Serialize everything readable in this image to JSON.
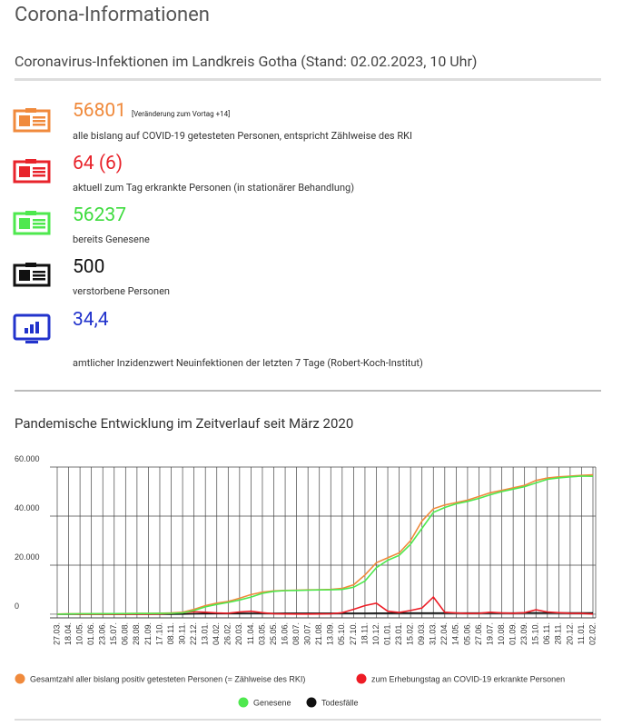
{
  "header": {
    "title": "Corona-Informationen",
    "subtitle": "Coronavirus-Infektionen im Landkreis Gotha (Stand: 02.02.2023, 10 Uhr)"
  },
  "stats": [
    {
      "value": "56801",
      "note": "[Veränderung zum Vortag +14]",
      "description": "alle bislang auf COVID-19 getesteten Personen, entspricht Zählweise des RKI"
    },
    {
      "value": "64 (6)",
      "description": "aktuell zum Tag erkrankte Personen (in stationärer Behandlung)"
    },
    {
      "value": "56237",
      "description": "bereits Genesene"
    },
    {
      "value": "500",
      "description": "verstorbene Personen"
    },
    {
      "value": "34,4",
      "description": "amtlicher Inzidenzwert Neuinfektionen der letzten 7 Tage (Robert-Koch-Institut)"
    }
  ],
  "chart_data": {
    "type": "line",
    "title": "Pandemische Entwicklung im Zeitverlauf seit März 2020",
    "categories": [
      "27.03.",
      "18.04.",
      "10.05.",
      "01.06.",
      "23.06.",
      "15.07.",
      "06.08.",
      "28.08.",
      "21.09.",
      "17.10.",
      "08.11.",
      "30.11.",
      "22.12.",
      "13.01.",
      "04.02.",
      "26.02.",
      "20.03.",
      "11.04.",
      "03.05.",
      "25.05.",
      "16.06.",
      "08.07.",
      "30.07.",
      "21.08.",
      "13.09.",
      "05.10.",
      "27.10.",
      "18.11.",
      "10.12.",
      "01.01.",
      "23.01.",
      "15.02.",
      "09.03.",
      "31.03.",
      "22.04.",
      "14.05.",
      "05.06.",
      "27.06.",
      "19.07.",
      "10.08.",
      "01.09.",
      "23.09.",
      "15.10.",
      "06.11.",
      "28.11.",
      "20.12.",
      "11.01.",
      "02.02."
    ],
    "series": [
      {
        "name": "Gesamtzahl aller bislang positiv getesteten Personen (= Zählweise des RKI)",
        "color": "#f08a3c",
        "values": [
          50,
          150,
          200,
          220,
          230,
          240,
          260,
          300,
          350,
          400,
          500,
          800,
          2000,
          3500,
          4500,
          5200,
          6500,
          8000,
          9000,
          9500,
          9700,
          9800,
          9900,
          10000,
          10100,
          10500,
          12000,
          16000,
          21000,
          23000,
          25000,
          30000,
          38000,
          43000,
          44500,
          45500,
          46500,
          48000,
          49500,
          50500,
          51500,
          52500,
          54500,
          55500,
          56000,
          56300,
          56600,
          56800
        ]
      },
      {
        "name": "zum Erhebungstag an COVID-19 erkrankte Personen",
        "color": "#ee1c25",
        "values": [
          50,
          80,
          20,
          10,
          10,
          10,
          20,
          40,
          60,
          100,
          300,
          600,
          1000,
          800,
          500,
          400,
          900,
          1200,
          600,
          200,
          80,
          60,
          60,
          80,
          150,
          600,
          2000,
          3500,
          4500,
          1200,
          700,
          1500,
          2500,
          7000,
          800,
          500,
          300,
          400,
          800,
          500,
          400,
          600,
          1800,
          900,
          600,
          400,
          300,
          64
        ]
      },
      {
        "name": "Genesene",
        "color": "#4ee84e",
        "values": [
          0,
          80,
          170,
          200,
          215,
          225,
          235,
          260,
          290,
          300,
          350,
          550,
          1500,
          3000,
          4000,
          4800,
          5800,
          7000,
          8500,
          9300,
          9600,
          9700,
          9800,
          9900,
          9950,
          10100,
          11000,
          13500,
          19000,
          22000,
          24000,
          28500,
          35000,
          41500,
          43500,
          45000,
          46000,
          47200,
          48700,
          50000,
          51000,
          52000,
          53500,
          55000,
          55600,
          56000,
          56300,
          56237
        ]
      },
      {
        "name": "Todesfälle",
        "color": "#111111",
        "values": [
          0,
          5,
          8,
          9,
          9,
          9,
          10,
          10,
          10,
          12,
          20,
          60,
          150,
          230,
          280,
          300,
          320,
          340,
          360,
          370,
          372,
          372,
          373,
          374,
          375,
          378,
          385,
          400,
          430,
          445,
          450,
          455,
          460,
          465,
          470,
          472,
          474,
          476,
          478,
          480,
          482,
          484,
          488,
          492,
          495,
          497,
          499,
          500
        ]
      }
    ],
    "ylim": [
      -1500,
      60000
    ],
    "yticks": [
      0,
      {
        "value": 20000,
        "label": "20.000"
      },
      {
        "value": 40000,
        "label": "40.000"
      },
      {
        "value": 60000,
        "label": "60.000"
      }
    ],
    "grid": true
  }
}
